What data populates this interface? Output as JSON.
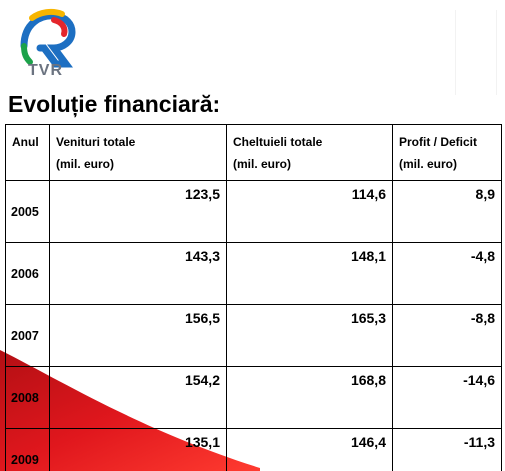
{
  "logo": {
    "text": "TVR",
    "colors": [
      "#e4262c",
      "#f7b500",
      "#1ca24a",
      "#1d6fc2"
    ]
  },
  "title": "Evoluție financiară:",
  "table": {
    "headers": [
      {
        "line1": "Anul",
        "line2": ""
      },
      {
        "line1": "Venituri totale",
        "line2": "(mil. euro)"
      },
      {
        "line1": "Cheltuieli totale",
        "line2": "(mil. euro)"
      },
      {
        "line1": "Profit / Deficit",
        "line2": "(mil. euro)"
      }
    ],
    "rows": [
      {
        "year": "2005",
        "revenue": "123,5",
        "expenses": "114,6",
        "profit": "8,9"
      },
      {
        "year": "2006",
        "revenue": "143,3",
        "expenses": "148,1",
        "profit": "-4,8"
      },
      {
        "year": "2007",
        "revenue": "156,5",
        "expenses": "165,3",
        "profit": "-8,8"
      },
      {
        "year": "2008",
        "revenue": "154,2",
        "expenses": "168,8",
        "profit": "-14,6"
      },
      {
        "year": "2009",
        "revenue": "135,1",
        "expenses": "146,4",
        "profit": "-11,3"
      }
    ]
  },
  "decor": {
    "swoosh_color": "#d4141a"
  }
}
